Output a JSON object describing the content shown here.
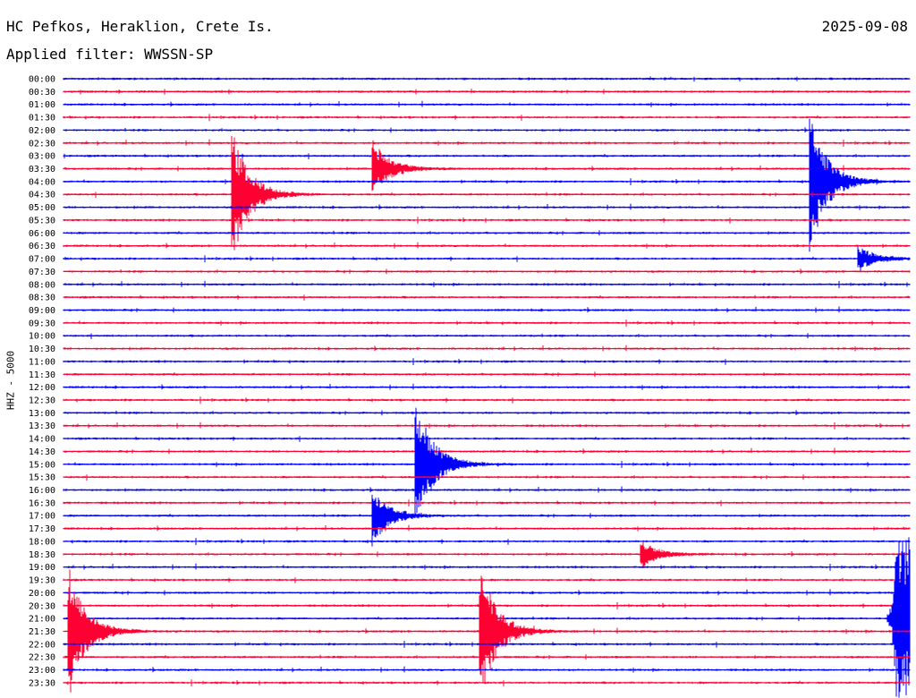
{
  "header": {
    "station": "HC Pefkos, Heraklion, Crete Is.",
    "date": "2025-09-08",
    "filter": "Applied filter: WWSSN-SP"
  },
  "axis": {
    "ylabel": "HHZ - 5000"
  },
  "colors": {
    "even_row": "#0000ff",
    "odd_row": "#ff0033",
    "background": "#ffffff"
  },
  "chart_data": {
    "type": "helicorder",
    "row_duration_minutes": 30,
    "row_labels": [
      "00:00",
      "00:30",
      "01:00",
      "01:30",
      "02:00",
      "02:30",
      "03:00",
      "03:30",
      "04:00",
      "04:30",
      "05:00",
      "05:30",
      "06:00",
      "06:30",
      "07:00",
      "07:30",
      "08:00",
      "08:30",
      "09:00",
      "09:30",
      "10:00",
      "10:30",
      "11:00",
      "11:30",
      "12:00",
      "12:30",
      "13:00",
      "13:30",
      "14:00",
      "14:30",
      "15:00",
      "15:30",
      "16:00",
      "16:30",
      "17:00",
      "17:30",
      "18:00",
      "18:30",
      "19:00",
      "19:30",
      "20:00",
      "20:30",
      "21:00",
      "21:30",
      "22:00",
      "22:30",
      "23:00",
      "23:30"
    ],
    "row_colors_cycle": [
      "blue",
      "red"
    ],
    "events": [
      {
        "row": "04:30",
        "minute": 6.0,
        "amplitude": "large"
      },
      {
        "row": "03:30",
        "minute": 11.0,
        "amplitude": "medium"
      },
      {
        "row": "04:00",
        "minute": 26.5,
        "amplitude": "large"
      },
      {
        "row": "07:00",
        "minute": 28.2,
        "amplitude": "small"
      },
      {
        "row": "15:00",
        "minute": 12.5,
        "amplitude": "large"
      },
      {
        "row": "17:00",
        "minute": 11.0,
        "amplitude": "medium"
      },
      {
        "row": "18:30",
        "minute": 20.5,
        "amplitude": "small"
      },
      {
        "row": "21:30",
        "minute": 0.2,
        "amplitude": "large"
      },
      {
        "row": "21:30",
        "minute": 14.8,
        "amplitude": "large"
      },
      {
        "row": "21:00",
        "minute": 29.5,
        "amplitude": "very-large"
      }
    ]
  }
}
